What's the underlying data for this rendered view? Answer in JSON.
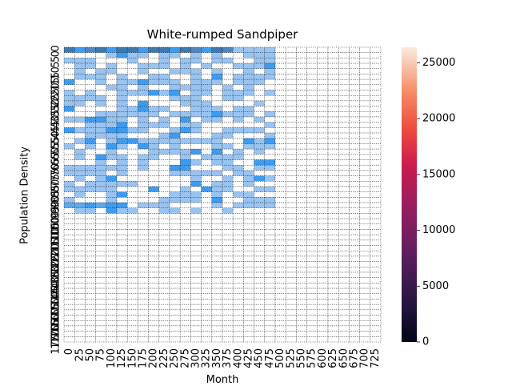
{
  "chart_data": {
    "type": "heatmap",
    "title": "White-rumped Sandpiper",
    "xlabel": "Month",
    "ylabel": "Population Density",
    "n_cols": 30,
    "n_rows": 55,
    "y_tick_labels": [
      "0",
      "5",
      "10",
      "15",
      "20",
      "25",
      "30",
      "35",
      "40",
      "45",
      "50",
      "55",
      "60",
      "65",
      "70",
      "75",
      "80",
      "85",
      "90",
      "95",
      "100",
      "105",
      "110",
      "115",
      "120",
      "125",
      "130",
      "135",
      "140",
      "145",
      "150",
      "155",
      "160",
      "165",
      "170",
      "175"
    ],
    "colorbar": {
      "colormap": "rocket",
      "range": [
        0,
        26400
      ],
      "ticks": [
        "0",
        "5000",
        "10000",
        "15000",
        "20000",
        "25000"
      ],
      "tick_values": [
        0,
        5000,
        10000,
        15000,
        20000,
        25000
      ]
    },
    "cell_colors": {
      "light": "#99c4f2",
      "mid": "#5ba9ef",
      "bright": "#3d9bf0",
      "dark": "#4f86bd",
      "darker": "#3b79b0",
      "empty": "#ffffff",
      "grid": "#000000"
    },
    "data_extent": {
      "rows": 31,
      "cols": 20
    }
  }
}
